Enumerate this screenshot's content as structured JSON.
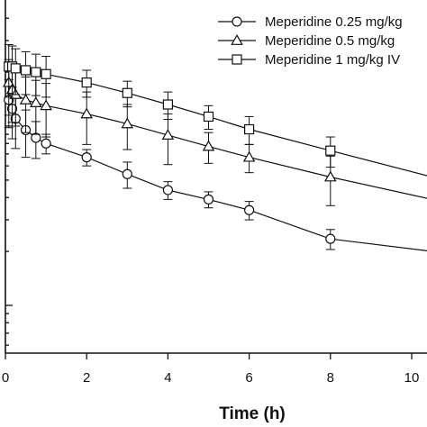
{
  "chart_data": {
    "type": "line",
    "title": "",
    "xlabel": "Time (h)",
    "ylabel": "",
    "x_scale": "linear",
    "y_scale": "log",
    "xlim": [
      0,
      10
    ],
    "x_ticks": [
      0,
      2,
      4,
      6,
      8,
      10
    ],
    "x_tick_labels": [
      "0",
      "2",
      "4",
      "6",
      "8",
      "10"
    ],
    "grid": false,
    "legend_position": "top-right",
    "error_bars": true,
    "series": [
      {
        "name": "Meperidine 0.25 mg/kg",
        "marker": "circle",
        "x": [
          0.083,
          0.167,
          0.25,
          0.5,
          0.75,
          1,
          2,
          3,
          4,
          5,
          6,
          8,
          10.5
        ],
        "y": [
          14,
          12.5,
          11,
          9.5,
          8.6,
          8,
          6.7,
          5.4,
          4.4,
          3.9,
          3.4,
          2.35,
          2.0
        ],
        "err": [
          4.2,
          4.0,
          3.5,
          2.8,
          2.0,
          1.0,
          0.7,
          0.9,
          0.5,
          0.4,
          0.4,
          0.3,
          0
        ]
      },
      {
        "name": "Meperidine 0.5 mg/kg",
        "marker": "triangle",
        "x": [
          0.083,
          0.167,
          0.25,
          0.5,
          0.75,
          1,
          2,
          3,
          4,
          5,
          6,
          8,
          10.5
        ],
        "y": [
          17.5,
          16,
          15,
          14,
          13.5,
          13,
          11.7,
          10.3,
          8.9,
          7.7,
          6.7,
          5.2,
          3.9
        ],
        "err": [
          6.0,
          5.5,
          5.0,
          4.8,
          4.5,
          4.3,
          3.8,
          2.9,
          2.8,
          1.5,
          1.2,
          1.6,
          0
        ]
      },
      {
        "name": "Meperidine 1 mg/kg IV",
        "marker": "square",
        "x": [
          0.083,
          0.167,
          0.25,
          0.5,
          0.75,
          1,
          2,
          3,
          4,
          5,
          6,
          8,
          10.5
        ],
        "y": [
          21.5,
          21.5,
          21,
          20.5,
          20,
          19.5,
          17.5,
          15.3,
          13.2,
          11.3,
          9.6,
          7.3,
          5.2
        ],
        "err": [
          7.0,
          6.5,
          6.0,
          5.5,
          5.2,
          5.0,
          3.0,
          2.5,
          2.3,
          1.7,
          1.7,
          1.4,
          0
        ]
      }
    ]
  }
}
